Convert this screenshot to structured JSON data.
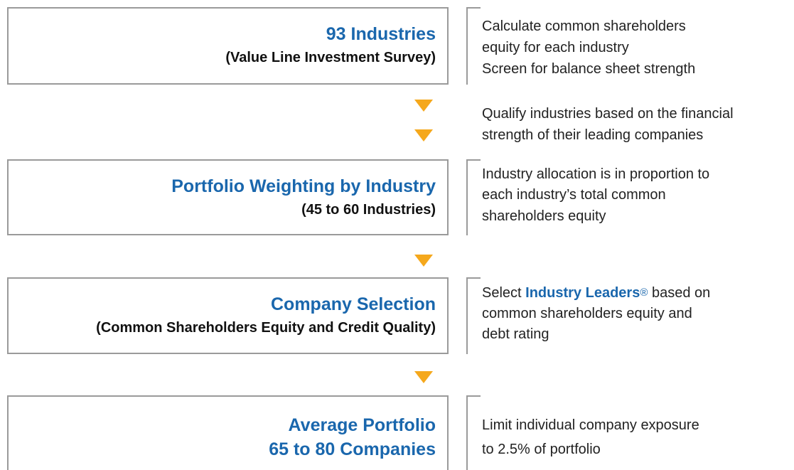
{
  "boxes": [
    {
      "title": "93 Industries",
      "subtitle": "(Value Line Investment Survey)"
    },
    {
      "title": "Portfolio Weighting by Industry",
      "subtitle": "(45 to 60 Industries)"
    },
    {
      "title": "Company Selection",
      "subtitle": "(Common Shareholders Equity and Credit Quality)"
    },
    {
      "title": "Average Portfolio",
      "title_line_2": "65 to 80 Companies"
    }
  ],
  "notes": [
    [
      "Calculate common shareholders",
      "equity for each industry",
      "Screen for balance sheet strength"
    ],
    [
      "Qualify industries based on the financial",
      "strength of their leading companies"
    ],
    [
      "Industry allocation is in proportion to",
      "each industry’s total common",
      "shareholders equity"
    ],
    [
      [
        "Select",
        "Industry Leaders",
        "®",
        "based on"
      ],
      "common shareholders equity and",
      "debt rating"
    ],
    [
      "Limit individual company exposure",
      "to 2.5% of portfolio"
    ]
  ]
}
